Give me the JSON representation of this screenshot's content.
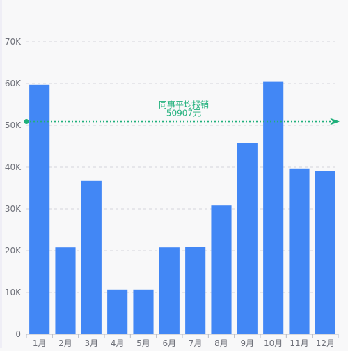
{
  "chart_data": {
    "type": "bar",
    "title": "",
    "xlabel": "",
    "ylabel": "",
    "categories": [
      "1月",
      "2月",
      "3月",
      "4月",
      "5月",
      "6月",
      "7月",
      "8月",
      "9月",
      "10月",
      "11月",
      "12月"
    ],
    "values": [
      59700,
      20800,
      36700,
      10700,
      10700,
      20800,
      21000,
      30800,
      45800,
      60400,
      39700,
      39000
    ],
    "ylim": [
      0,
      70000
    ],
    "yticks": [
      0,
      10000,
      20000,
      30000,
      40000,
      50000,
      60000,
      70000
    ],
    "ytick_labels": [
      "0",
      "10K",
      "20K",
      "30K",
      "40K",
      "50K",
      "60K",
      "70K"
    ],
    "grid": true,
    "bar_color": "#4287f5",
    "reference_line": {
      "value": 50907,
      "label": "同事平均报销",
      "value_label": "50907元",
      "color": "#1fb07b"
    }
  }
}
